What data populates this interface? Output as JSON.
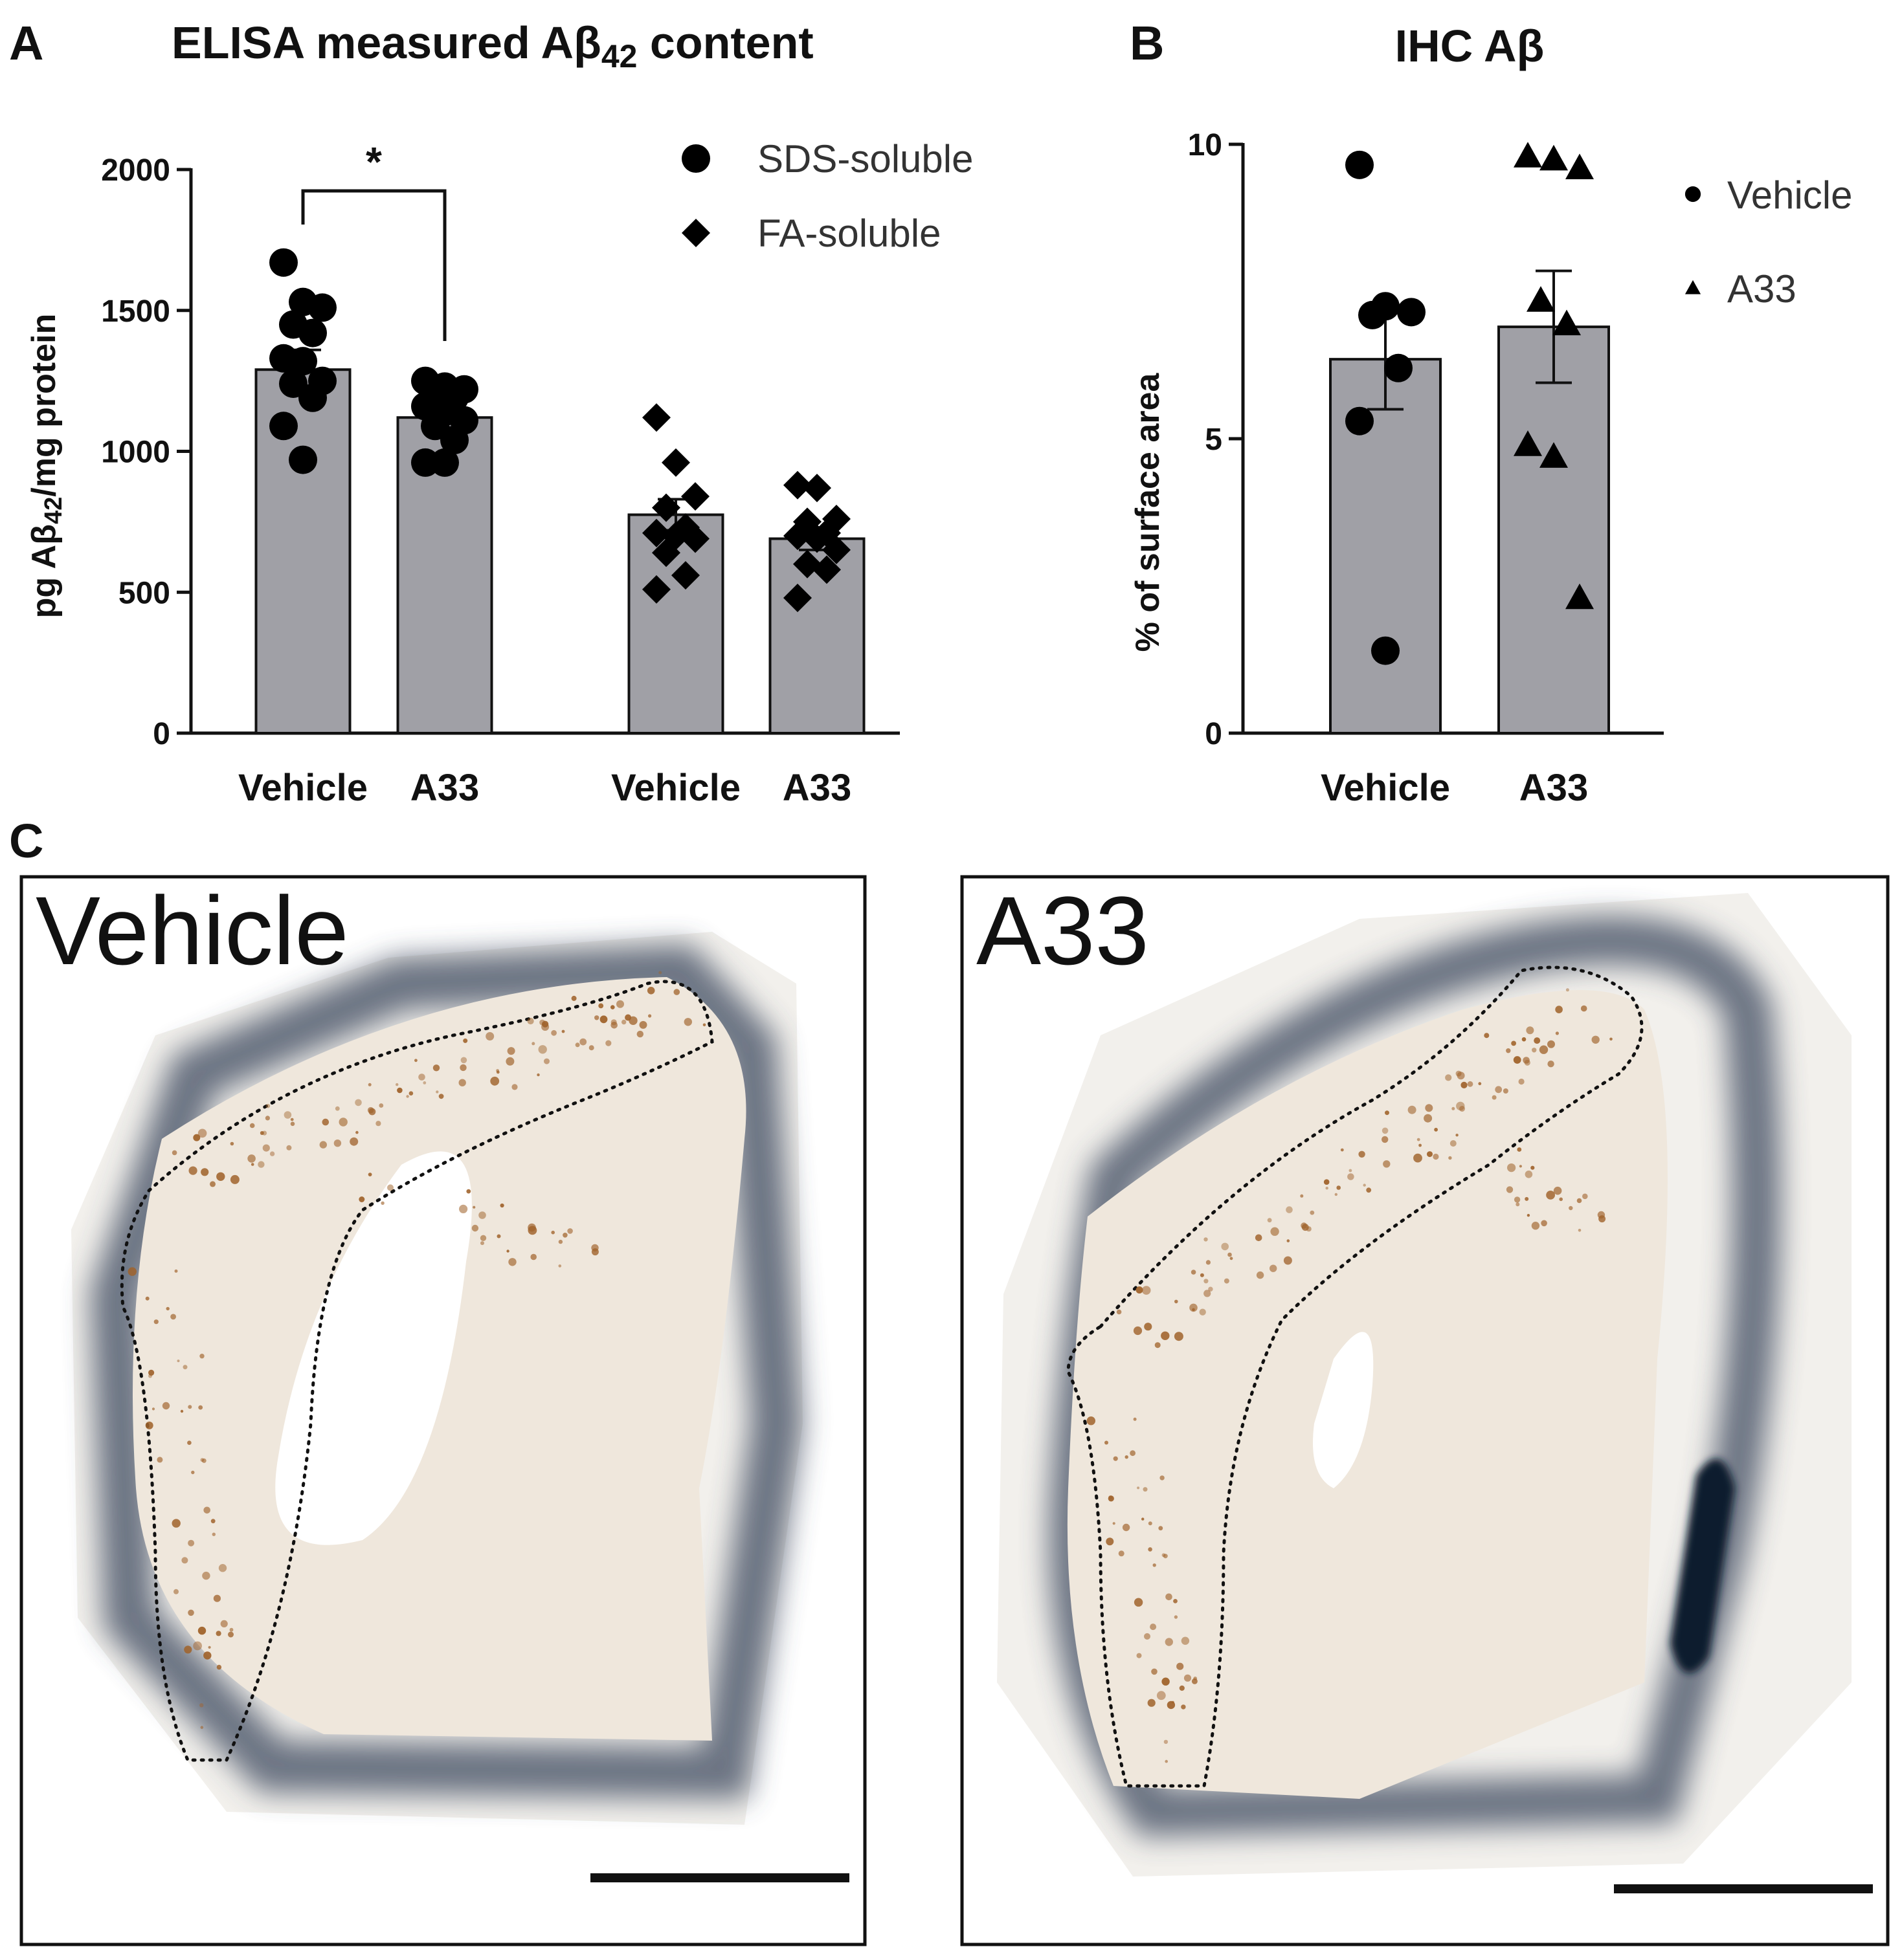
{
  "panel_labels": {
    "a": "A",
    "b": "B",
    "c": "C"
  },
  "colors": {
    "bar_fill": "#a0a0a6",
    "marker": "#000000",
    "photo_tissue": "#efe7dc",
    "photo_stain": "#a0632b",
    "photo_halo": "#3c4a5f"
  },
  "chart_data": [
    {
      "type": "bar",
      "title": "ELISA measured Aβ42 content",
      "title_main": "ELISA measured Aβ",
      "title_sub": "42",
      "title_end": " content",
      "ylabel": "pg Aβ42/mg protein",
      "ylabel_main": "pg Aβ",
      "ylabel_sub": "42",
      "ylabel_end": "/mg protein",
      "ylim": [
        0,
        2000
      ],
      "yticks": [
        0,
        500,
        1000,
        1500,
        2000
      ],
      "ytick_labels": [
        "0",
        "500",
        "1000",
        "1500",
        "2000"
      ],
      "categories": [
        "Vehicle",
        "A33",
        "Vehicle",
        "A33"
      ],
      "series": [
        {
          "name": "SDS-soluble",
          "marker": "circle",
          "groups": [
            {
              "label": "Vehicle",
              "mean": 1290,
              "sem": 70,
              "points": [
                1670,
                1530,
                1510,
                1450,
                1420,
                1330,
                1320,
                1250,
                1240,
                1190,
                1090,
                970
              ]
            },
            {
              "label": "A33",
              "mean": 1120,
              "sem": 35,
              "points": [
                1250,
                1230,
                1220,
                1210,
                1190,
                1160,
                1140,
                1110,
                1090,
                1040,
                960,
                960
              ]
            }
          ]
        },
        {
          "name": "FA-soluble",
          "marker": "diamond",
          "groups": [
            {
              "label": "Vehicle",
              "mean": 775,
              "sem": 55,
              "points": [
                1120,
                960,
                840,
                800,
                730,
                710,
                700,
                690,
                640,
                560,
                510
              ]
            },
            {
              "label": "A33",
              "mean": 690,
              "sem": 40,
              "points": [
                880,
                870,
                760,
                750,
                710,
                700,
                690,
                650,
                600,
                580,
                480
              ]
            }
          ]
        }
      ],
      "significance": {
        "between": [
          "Vehicle",
          "A33"
        ],
        "series": "SDS-soluble",
        "label": "*"
      },
      "legend": {
        "position": "top-right",
        "entries": [
          "SDS-soluble",
          "FA-soluble"
        ]
      }
    },
    {
      "type": "bar",
      "title": "IHC Aβ",
      "ylabel": "% of surface area",
      "ylim": [
        0,
        10
      ],
      "yticks": [
        0,
        5,
        10
      ],
      "ytick_labels": [
        "0",
        "5",
        "10"
      ],
      "categories": [
        "Vehicle",
        "A33"
      ],
      "series": [
        {
          "name": "Vehicle",
          "marker": "circle",
          "mean": 6.35,
          "sem": 0.85,
          "points": [
            9.65,
            7.25,
            7.15,
            7.1,
            6.2,
            5.3,
            1.4
          ]
        },
        {
          "name": "A33",
          "marker": "triangle",
          "mean": 6.9,
          "sem": 0.95,
          "points": [
            9.8,
            9.75,
            9.6,
            7.35,
            6.95,
            4.9,
            4.7,
            2.3
          ]
        }
      ],
      "legend": {
        "position": "top-right",
        "entries": [
          "Vehicle",
          "A33"
        ]
      }
    }
  ],
  "micrographs": [
    {
      "label": "Vehicle"
    },
    {
      "label": "A33"
    }
  ]
}
